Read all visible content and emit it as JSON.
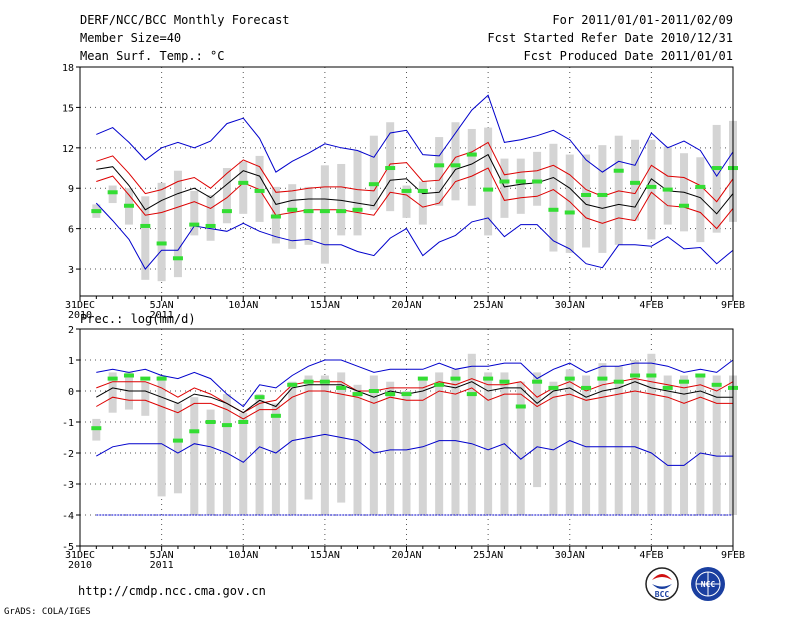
{
  "header": {
    "left": [
      "DERF/NCC/BCC Monthly Forecast",
      "Member Size=40",
      "Mean Surf. Temp.: °C"
    ],
    "right": [
      "For 2011/01/01-2011/02/09",
      "Fcst Started Refer Date 2010/12/31",
      "Fcst Produced Date 2011/01/01"
    ]
  },
  "footer": {
    "url": "http://cmdp.ncc.cma.gov.cn",
    "credit": "GrADS: COLA/IGES",
    "logo1_text": "BCC",
    "logo2_text": "NCC"
  },
  "colors": {
    "outer": "#0000cc",
    "inner": "#dd0000",
    "mean": "#000000",
    "box": "#d4d4d4",
    "obs": "#33dd33"
  },
  "chart_data": [
    {
      "type": "line",
      "name": "temperature",
      "title": "Mean Surf. Temp.: °C",
      "x_tick_labels": [
        "31DEC\n2010",
        "5JAN\n2011",
        "10JAN",
        "15JAN",
        "20JAN",
        "25JAN",
        "30JAN",
        "4FEB",
        "9FEB"
      ],
      "x_tick_days": [
        0,
        5,
        10,
        15,
        20,
        25,
        30,
        35,
        40
      ],
      "ylim": [
        1,
        18
      ],
      "yticks": [
        3,
        6,
        9,
        12,
        15,
        18
      ],
      "days": [
        1,
        2,
        3,
        4,
        5,
        6,
        7,
        8,
        9,
        10,
        11,
        12,
        13,
        14,
        15,
        16,
        17,
        18,
        19,
        20,
        21,
        22,
        23,
        24,
        25,
        26,
        27,
        28,
        29,
        30,
        31,
        32,
        33,
        34,
        35,
        36,
        37,
        38,
        39,
        40
      ],
      "box_low": [
        6.8,
        7.9,
        6.3,
        2.2,
        2.1,
        2.4,
        5.5,
        5.1,
        6.4,
        7.1,
        6.5,
        4.9,
        4.5,
        4.8,
        3.4,
        5.5,
        5.5,
        7.4,
        7.3,
        6.8,
        6.3,
        7.7,
        8.1,
        7.7,
        5.5,
        6.8,
        7.1,
        7.7,
        4.3,
        4.2,
        4.6,
        4.2,
        4.8,
        6.6,
        5.2,
        6.3,
        5.8,
        5.0,
        5.7,
        6.5
      ],
      "box_high": [
        7.8,
        9.2,
        9.0,
        8.4,
        9.4,
        10.3,
        8.8,
        8.5,
        10.5,
        11.0,
        11.4,
        9.1,
        9.3,
        9.1,
        10.7,
        10.8,
        11.8,
        12.9,
        13.9,
        9.2,
        9.5,
        12.8,
        13.9,
        13.4,
        13.5,
        11.2,
        11.2,
        11.7,
        12.3,
        11.5,
        11.5,
        12.2,
        12.9,
        12.6,
        12.6,
        12.1,
        11.6,
        11.3,
        13.7,
        14.0
      ],
      "series": [
        {
          "name": "max",
          "role": "outer",
          "values": [
            13.0,
            13.5,
            12.4,
            11.1,
            12.0,
            12.4,
            12.0,
            12.5,
            13.8,
            14.2,
            12.7,
            10.2,
            11.0,
            11.6,
            12.3,
            12.0,
            11.8,
            11.3,
            13.1,
            13.3,
            11.5,
            11.4,
            13.1,
            14.8,
            15.9,
            12.4,
            12.6,
            12.9,
            13.3,
            12.6,
            11.1,
            10.2,
            11.0,
            10.7,
            13.1,
            12.0,
            12.5,
            11.8,
            9.9,
            11.7
          ]
        },
        {
          "name": "upper",
          "role": "inner",
          "values": [
            11.0,
            11.4,
            10.1,
            8.6,
            8.9,
            9.5,
            9.8,
            9.0,
            10.1,
            11.1,
            10.6,
            8.7,
            8.8,
            9.0,
            9.1,
            9.1,
            8.9,
            8.8,
            10.8,
            10.9,
            9.5,
            9.6,
            11.3,
            11.7,
            12.4,
            10.0,
            10.2,
            10.3,
            10.7,
            10.0,
            8.9,
            8.4,
            8.8,
            8.6,
            10.7,
            9.9,
            9.8,
            9.2,
            8.0,
            9.7
          ]
        },
        {
          "name": "mean",
          "role": "mean",
          "values": [
            10.4,
            10.6,
            9.2,
            7.4,
            8.1,
            8.6,
            9.0,
            8.3,
            9.3,
            10.3,
            9.9,
            7.8,
            8.1,
            8.2,
            8.2,
            8.1,
            7.9,
            7.7,
            9.6,
            9.7,
            8.6,
            8.7,
            10.4,
            10.8,
            11.5,
            9.1,
            9.3,
            9.4,
            9.8,
            9.0,
            7.8,
            7.5,
            7.8,
            7.6,
            9.7,
            8.8,
            8.7,
            8.3,
            7.1,
            8.6
          ]
        },
        {
          "name": "lower",
          "role": "inner",
          "values": [
            9.5,
            9.9,
            8.5,
            7.0,
            7.2,
            7.6,
            8.0,
            7.5,
            8.3,
            9.4,
            8.9,
            7.0,
            7.2,
            7.4,
            7.4,
            7.4,
            7.2,
            7.0,
            8.7,
            8.5,
            7.6,
            7.9,
            9.5,
            9.9,
            10.5,
            8.1,
            8.3,
            8.4,
            8.9,
            8.0,
            6.8,
            6.4,
            6.8,
            6.6,
            8.7,
            7.7,
            7.6,
            7.2,
            6.0,
            7.5
          ]
        },
        {
          "name": "min",
          "role": "outer",
          "values": [
            7.9,
            6.6,
            5.2,
            3.0,
            4.4,
            4.4,
            6.2,
            6.0,
            5.8,
            6.4,
            5.8,
            5.4,
            5.1,
            5.2,
            4.8,
            4.8,
            4.3,
            4.0,
            5.3,
            6.0,
            4.0,
            5.0,
            5.5,
            6.5,
            6.8,
            5.4,
            6.3,
            6.3,
            5.1,
            4.5,
            3.4,
            3.1,
            4.8,
            4.8,
            4.7,
            5.4,
            4.5,
            4.6,
            3.4,
            4.4
          ]
        },
        {
          "name": "observed",
          "role": "obs",
          "values": [
            7.3,
            8.7,
            7.7,
            6.2,
            4.9,
            3.8,
            6.3,
            6.2,
            7.3,
            9.4,
            8.8,
            6.9,
            7.4,
            7.3,
            7.3,
            7.3,
            7.4,
            9.3,
            10.5,
            8.8,
            8.8,
            10.7,
            10.7,
            11.5,
            8.9,
            9.5,
            9.5,
            9.5,
            7.4,
            7.2,
            8.5,
            8.5,
            10.3,
            9.4,
            9.1,
            8.9,
            7.7,
            9.1,
            10.5,
            10.5
          ]
        }
      ]
    },
    {
      "type": "line",
      "name": "precipitation",
      "title": "Prec.: log(mm/d)",
      "x_tick_labels": [
        "31DEC\n2010",
        "5JAN\n2011",
        "10JAN",
        "15JAN",
        "20JAN",
        "25JAN",
        "30JAN",
        "4FEB",
        "9FEB"
      ],
      "x_tick_days": [
        0,
        5,
        10,
        15,
        20,
        25,
        30,
        35,
        40
      ],
      "ylim": [
        -5,
        2
      ],
      "yticks": [
        -5,
        -4,
        -3,
        -2,
        -1,
        0,
        1,
        2
      ],
      "days": [
        1,
        2,
        3,
        4,
        5,
        6,
        7,
        8,
        9,
        10,
        11,
        12,
        13,
        14,
        15,
        16,
        17,
        18,
        19,
        20,
        21,
        22,
        23,
        24,
        25,
        26,
        27,
        28,
        29,
        30,
        31,
        32,
        33,
        34,
        35,
        36,
        37,
        38,
        39,
        40
      ],
      "box_low": [
        -1.6,
        -0.7,
        -0.6,
        -0.8,
        -3.4,
        -3.3,
        -4.0,
        -4.0,
        -4.0,
        -4.0,
        -4.0,
        -4.0,
        -4.0,
        -3.5,
        -4.0,
        -3.6,
        -4.0,
        -4.0,
        -4.0,
        -4.0,
        -4.0,
        -4.0,
        -4.0,
        -4.0,
        -4.0,
        -4.0,
        -4.0,
        -3.1,
        -4.0,
        -4.0,
        -4.0,
        -4.0,
        -4.0,
        -4.0,
        -4.0,
        -4.0,
        -4.0,
        -4.0,
        -4.0,
        -4.0
      ],
      "box_high": [
        -0.9,
        0.6,
        0.6,
        0.3,
        0.5,
        -0.4,
        -0.2,
        -0.6,
        -0.1,
        -0.7,
        -0.1,
        -0.4,
        0.3,
        0.5,
        0.5,
        0.6,
        0.2,
        0.5,
        0.3,
        0.0,
        0.4,
        0.6,
        0.7,
        1.2,
        0.6,
        0.6,
        0.3,
        0.6,
        0.3,
        0.7,
        0.5,
        0.9,
        0.8,
        1.0,
        1.2,
        0.5,
        0.5,
        0.5,
        0.5,
        0.5
      ],
      "series": [
        {
          "name": "max",
          "role": "outer",
          "values": [
            0.6,
            0.7,
            0.6,
            0.7,
            0.5,
            0.4,
            0.6,
            0.4,
            -0.1,
            -0.5,
            0.2,
            0.1,
            0.5,
            0.8,
            1.0,
            1.0,
            0.8,
            0.6,
            0.7,
            0.7,
            0.7,
            0.9,
            0.7,
            0.8,
            0.8,
            0.9,
            0.9,
            0.4,
            0.7,
            0.9,
            0.6,
            0.8,
            0.8,
            0.9,
            0.9,
            0.8,
            0.6,
            0.7,
            0.6,
            1.0
          ]
        },
        {
          "name": "upper",
          "role": "inner",
          "values": [
            0.1,
            0.3,
            0.3,
            0.3,
            0.1,
            -0.2,
            0.1,
            -0.1,
            -0.4,
            -0.7,
            -0.4,
            -0.3,
            0.2,
            0.3,
            0.3,
            0.3,
            0.0,
            0.0,
            0.1,
            0.1,
            0.1,
            0.3,
            0.2,
            0.4,
            0.2,
            0.2,
            0.3,
            -0.2,
            0.1,
            0.3,
            0.0,
            0.2,
            0.3,
            0.4,
            0.3,
            0.2,
            0.1,
            0.2,
            0.0,
            0.3
          ]
        },
        {
          "name": "mean",
          "role": "mean",
          "values": [
            -0.2,
            0.1,
            0.0,
            0.0,
            -0.2,
            -0.4,
            -0.1,
            -0.2,
            -0.4,
            -0.7,
            -0.3,
            -0.5,
            0.1,
            0.2,
            0.2,
            0.2,
            0.0,
            -0.2,
            0.0,
            -0.1,
            0.0,
            0.2,
            0.1,
            0.3,
            0.0,
            0.1,
            0.1,
            -0.4,
            0.0,
            0.1,
            -0.2,
            0.0,
            0.1,
            0.3,
            0.1,
            0.0,
            -0.1,
            0.0,
            -0.2,
            -0.2
          ]
        },
        {
          "name": "lower",
          "role": "inner",
          "values": [
            -0.5,
            -0.2,
            -0.3,
            -0.3,
            -0.5,
            -0.7,
            -0.4,
            -0.4,
            -0.6,
            -0.9,
            -0.6,
            -0.6,
            -0.2,
            0.0,
            0.0,
            -0.1,
            -0.2,
            -0.4,
            -0.2,
            -0.3,
            -0.3,
            0.0,
            -0.1,
            0.1,
            -0.3,
            -0.1,
            -0.1,
            -0.5,
            -0.2,
            -0.1,
            -0.3,
            -0.2,
            -0.1,
            0.0,
            -0.1,
            -0.2,
            -0.4,
            -0.2,
            -0.4,
            -0.4
          ]
        },
        {
          "name": "min",
          "role": "outer",
          "values": [
            -2.1,
            -1.8,
            -1.7,
            -1.7,
            -1.7,
            -2.0,
            -1.7,
            -1.8,
            -2.0,
            -2.3,
            -1.8,
            -2.0,
            -1.6,
            -1.5,
            -1.4,
            -1.5,
            -1.6,
            -2.0,
            -1.9,
            -1.9,
            -1.8,
            -1.6,
            -1.6,
            -1.7,
            -1.9,
            -1.7,
            -2.2,
            -1.8,
            -1.9,
            -1.6,
            -1.8,
            -1.8,
            -1.8,
            -1.8,
            -2.0,
            -2.4,
            -2.4,
            -2.0,
            -2.1,
            -2.1
          ]
        },
        {
          "name": "observed",
          "role": "obs",
          "values": [
            -1.2,
            0.4,
            0.5,
            0.4,
            0.4,
            -1.6,
            -1.3,
            -1.0,
            -1.1,
            -1.0,
            -0.2,
            -0.8,
            0.2,
            0.3,
            0.3,
            0.1,
            -0.1,
            0.0,
            -0.1,
            -0.1,
            0.4,
            0.2,
            0.4,
            -0.1,
            0.4,
            0.3,
            -0.5,
            0.3,
            0.1,
            0.4,
            0.1,
            0.4,
            0.3,
            0.5,
            0.5,
            0.1,
            0.3,
            0.5,
            0.2,
            0.1
          ]
        },
        {
          "name": "floor",
          "role": "floor",
          "values": [
            -4,
            -4,
            -4,
            -4,
            -4,
            -4,
            -4,
            -4,
            -4,
            -4,
            -4,
            -4,
            -4,
            -4,
            -4,
            -4,
            -4,
            -4,
            -4,
            -4,
            -4,
            -4,
            -4,
            -4,
            -4,
            -4,
            -4,
            -4,
            -4,
            -4,
            -4,
            -4,
            -4,
            -4,
            -4,
            -4,
            -4,
            -4,
            -4,
            -4
          ]
        }
      ]
    }
  ]
}
